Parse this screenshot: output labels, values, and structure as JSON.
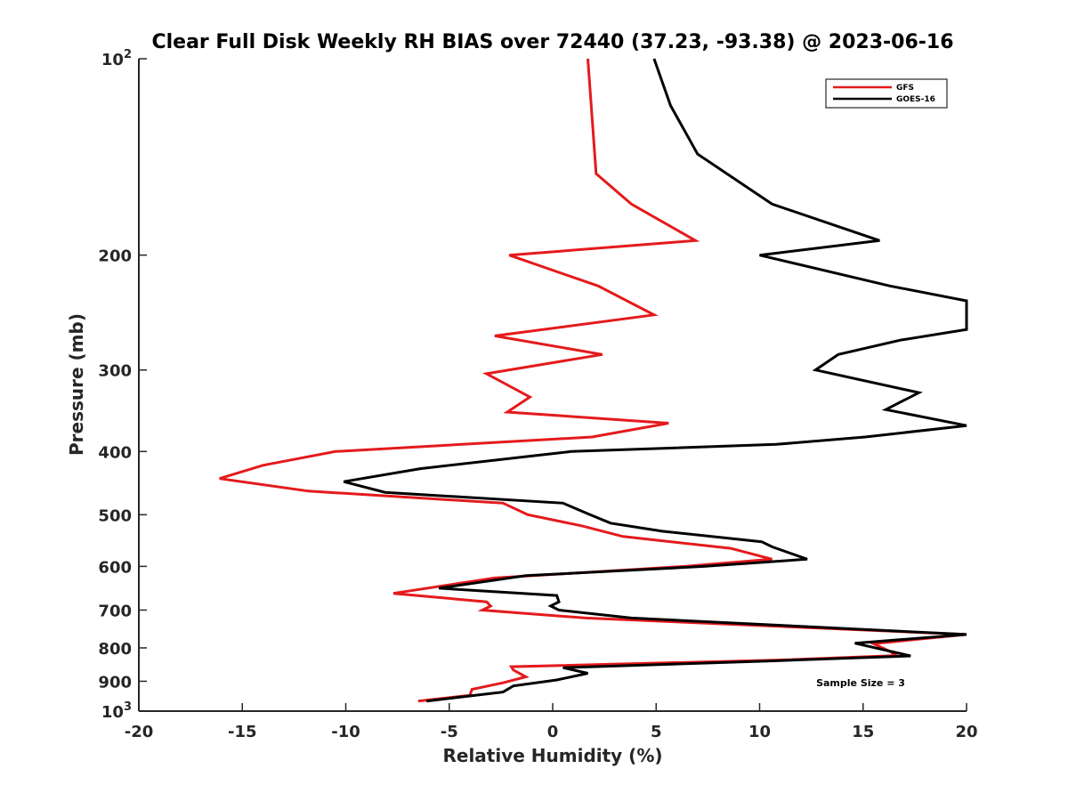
{
  "chart_data": {
    "type": "line",
    "title": "Clear Full Disk Weekly RH BIAS over 72440 (37.23, -93.38) @ 2023-06-16",
    "xlabel": "Relative Humidity (%)",
    "ylabel": "Pressure (mb)",
    "xlim": [
      -20,
      20
    ],
    "ylim": [
      100,
      1000
    ],
    "y_scale": "log",
    "y_reversed": true,
    "grid": false,
    "legend_position": "top-right",
    "x_ticks": [
      "-20",
      "-15",
      "-10",
      "-5",
      "0",
      "5",
      "10",
      "15",
      "20"
    ],
    "y_ticks": [
      {
        "value": 100,
        "base": "10",
        "exp": "2"
      },
      {
        "value": 200,
        "label": "200"
      },
      {
        "value": 300,
        "label": "300"
      },
      {
        "value": 400,
        "label": "400"
      },
      {
        "value": 500,
        "label": "500"
      },
      {
        "value": 600,
        "label": "600"
      },
      {
        "value": 700,
        "label": "700"
      },
      {
        "value": 800,
        "label": "800"
      },
      {
        "value": 900,
        "label": "900"
      },
      {
        "value": 1000,
        "base": "10",
        "exp": "3"
      }
    ],
    "annotation": "Sample Size = 3",
    "series": [
      {
        "name": "GFS",
        "color": "#e41a1c",
        "points": [
          [
            1.7,
            100
          ],
          [
            2.1,
            150
          ],
          [
            3.8,
            167
          ],
          [
            6.9,
            190
          ],
          [
            -2.1,
            200
          ],
          [
            2.2,
            223
          ],
          [
            4.9,
            247
          ],
          [
            -2.8,
            266
          ],
          [
            2.4,
            284
          ],
          [
            -3.2,
            304
          ],
          [
            -1.1,
            330
          ],
          [
            -2.2,
            348
          ],
          [
            5.6,
            362
          ],
          [
            1.9,
            380
          ],
          [
            -10.5,
            400
          ],
          [
            -14.0,
            420
          ],
          [
            -16.1,
            440
          ],
          [
            -11.8,
            460
          ],
          [
            -2.4,
            480
          ],
          [
            -1.2,
            500
          ],
          [
            1.4,
            520
          ],
          [
            3.4,
            540
          ],
          [
            8.6,
            563
          ],
          [
            10.6,
            585
          ],
          [
            6.4,
            600
          ],
          [
            -2.8,
            625
          ],
          [
            -7.7,
            660
          ],
          [
            -3.2,
            680
          ],
          [
            -3.0,
            690
          ],
          [
            -3.4,
            700
          ],
          [
            1.6,
            720
          ],
          [
            20.0,
            763
          ],
          [
            15.5,
            788
          ],
          [
            16.3,
            810
          ],
          [
            16.6,
            822
          ],
          [
            11.0,
            835
          ],
          [
            -2.0,
            855
          ],
          [
            -1.9,
            865
          ],
          [
            -1.3,
            886
          ],
          [
            -2.4,
            905
          ],
          [
            -3.9,
            926
          ],
          [
            -4.0,
            946
          ],
          [
            -6.5,
            965
          ]
        ]
      },
      {
        "name": "GOES-16",
        "color": "#000000",
        "points": [
          [
            4.9,
            100
          ],
          [
            5.7,
            118
          ],
          [
            7.0,
            140
          ],
          [
            10.6,
            167
          ],
          [
            15.8,
            190
          ],
          [
            10.0,
            200
          ],
          [
            16.3,
            223
          ],
          [
            20.0,
            235
          ],
          [
            20.0,
            260
          ],
          [
            16.8,
            270
          ],
          [
            13.8,
            284
          ],
          [
            12.7,
            300
          ],
          [
            17.7,
            325
          ],
          [
            16.1,
            345
          ],
          [
            20.0,
            365
          ],
          [
            15.1,
            380
          ],
          [
            10.8,
            390
          ],
          [
            0.9,
            400
          ],
          [
            -6.4,
            425
          ],
          [
            -10.1,
            445
          ],
          [
            -8.1,
            462
          ],
          [
            0.5,
            480
          ],
          [
            1.8,
            500
          ],
          [
            2.8,
            515
          ],
          [
            5.3,
            530
          ],
          [
            10.1,
            550
          ],
          [
            10.6,
            560
          ],
          [
            12.3,
            585
          ],
          [
            7.3,
            600
          ],
          [
            -1.3,
            620
          ],
          [
            -5.5,
            648
          ],
          [
            0.2,
            665
          ],
          [
            0.3,
            680
          ],
          [
            -0.1,
            690
          ],
          [
            0.3,
            700
          ],
          [
            3.8,
            720
          ],
          [
            20.0,
            763
          ],
          [
            14.6,
            787
          ],
          [
            17.3,
            823
          ],
          [
            10.4,
            838
          ],
          [
            0.5,
            858
          ],
          [
            1.7,
            875
          ],
          [
            0.2,
            896
          ],
          [
            -1.9,
            915
          ],
          [
            -2.4,
            935
          ],
          [
            -6.1,
            965
          ]
        ]
      }
    ]
  }
}
